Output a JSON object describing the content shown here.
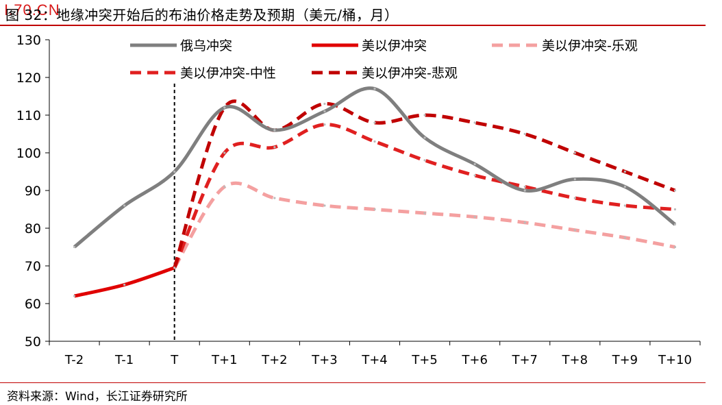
{
  "header": {
    "title": "图 32：地缘冲突开始后的布油价格走势及预期（美元/桶，月）",
    "watermark": "I.70.CN"
  },
  "footer": {
    "source": "资料来源：Wind，长江证券研究所"
  },
  "colors": {
    "accent_rule": "#c00000",
    "russia": "#7f7f7f",
    "usisrael": "#e00000",
    "optimistic": "#f4a0a0",
    "neutral": "#e02020",
    "pessimistic": "#c00000"
  },
  "chart_data": {
    "type": "line",
    "title": "",
    "xlabel": "",
    "ylabel": "",
    "ylim": [
      50,
      130
    ],
    "yticks": [
      50,
      60,
      70,
      80,
      90,
      100,
      110,
      120,
      130
    ],
    "categories": [
      "T-2",
      "T-1",
      "T",
      "T+1",
      "T+2",
      "T+3",
      "T+4",
      "T+5",
      "T+6",
      "T+7",
      "T+8",
      "T+9",
      "T+10"
    ],
    "event_marker": "T",
    "legend": "top",
    "series": [
      {
        "name": "俄乌冲突",
        "style": "solid",
        "color": "#7f7f7f",
        "values": [
          75,
          86,
          95,
          112,
          106,
          111,
          117,
          104,
          97,
          90,
          93,
          91,
          81
        ]
      },
      {
        "name": "美以伊冲突",
        "style": "solid",
        "color": "#e00000",
        "values": [
          62,
          65,
          69.5,
          null,
          null,
          null,
          null,
          null,
          null,
          null,
          null,
          null,
          null
        ]
      },
      {
        "name": "美以伊冲突-乐观",
        "style": "dashed",
        "color": "#f4a0a0",
        "values": [
          null,
          null,
          69.5,
          91,
          88,
          86,
          85,
          84,
          83,
          81.5,
          79.5,
          77.5,
          75
        ]
      },
      {
        "name": "美以伊冲突-中性",
        "style": "dashed",
        "color": "#e02020",
        "values": [
          null,
          null,
          69.5,
          100,
          101.5,
          107.5,
          103,
          98,
          94,
          91,
          88,
          86,
          85
        ]
      },
      {
        "name": "美以伊冲突-悲观",
        "style": "dashed",
        "color": "#c00000",
        "values": [
          null,
          null,
          69.5,
          112,
          106,
          113,
          108,
          110,
          108,
          105,
          100,
          95,
          90
        ]
      }
    ]
  }
}
